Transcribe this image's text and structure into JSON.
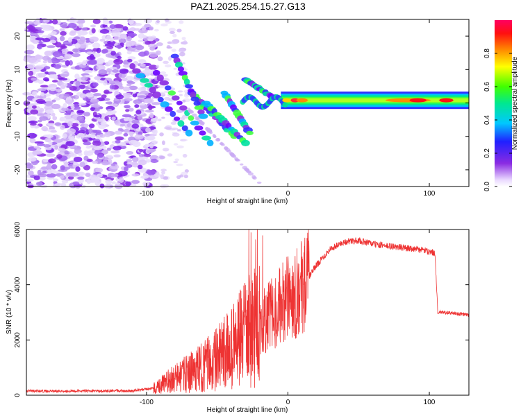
{
  "title": "PAZ1.2025.254.15.27.G13",
  "spectrogram": {
    "xlabel": "Height of straight line (km)",
    "ylabel": "Frequency (Hz)",
    "xlim": [
      -185,
      128
    ],
    "ylim": [
      -25,
      25
    ],
    "xticks": [
      -100,
      0,
      100
    ],
    "yticks": [
      -20,
      -10,
      0,
      10,
      20
    ],
    "colorbar": {
      "label": "Normalized spectral amplitude",
      "range": [
        0,
        1
      ],
      "ticks": [
        "0.0",
        "0.2",
        "0.4",
        "0.6",
        "0.8"
      ]
    },
    "signal_band_center_hz": 0.8
  },
  "chart_data": {
    "type": "line",
    "title": "PAZ1.2025.254.15.27.G13",
    "xlabel": "Height of straight line (km)",
    "ylabel": "SNR (10 * v/v)",
    "xlim": [
      -185,
      128
    ],
    "ylim": [
      0,
      6000
    ],
    "xticks": [
      -100,
      0,
      100
    ],
    "yticks": [
      0,
      2000,
      4000,
      6000
    ],
    "color": "#ee3333",
    "series": [
      {
        "name": "SNR",
        "x": [
          -185,
          -150,
          -110,
          -95,
          -80,
          -65,
          -50,
          -40,
          -30,
          -20,
          -10,
          0,
          10,
          20,
          30,
          40,
          50,
          60,
          70,
          80,
          90,
          100,
          104,
          106,
          110,
          120,
          128
        ],
        "y": [
          150,
          150,
          160,
          250,
          600,
          900,
          1300,
          1700,
          2200,
          2600,
          3000,
          3500,
          3900,
          4700,
          5300,
          5550,
          5600,
          5480,
          5400,
          5350,
          5300,
          5200,
          5150,
          3000,
          3000,
          2950,
          2900
        ]
      }
    ]
  }
}
